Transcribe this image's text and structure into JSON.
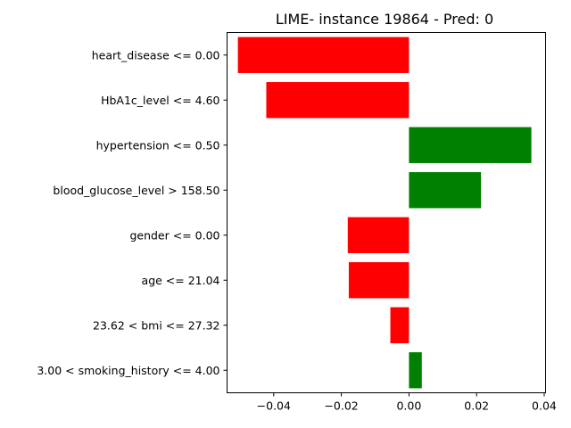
{
  "chart_data": {
    "type": "bar",
    "orientation": "horizontal",
    "title": "LIME- instance 19864 - Pred: 0",
    "xlabel": "",
    "ylabel": "",
    "xlim": [
      -0.0538,
      0.0404
    ],
    "xticks": [
      -0.04,
      -0.02,
      0.0,
      0.02,
      0.04
    ],
    "xtick_labels": [
      "−0.04",
      "−0.02",
      "0.00",
      "0.02",
      "0.04"
    ],
    "grid": false,
    "categories": [
      "heart_disease <= 0.00",
      "HbA1c_level <= 4.60",
      "hypertension <= 0.50",
      "blood_glucose_level > 158.50",
      "gender <= 0.00",
      "age <= 21.04",
      "23.62 < bmi <= 27.32",
      "3.00 < smoking_history <= 4.00"
    ],
    "values": [
      -0.0506,
      -0.0422,
      0.0362,
      0.0213,
      -0.0181,
      -0.0178,
      -0.0055,
      0.0038
    ],
    "colors": {
      "negative": "#ff0000",
      "positive": "#008000"
    }
  }
}
